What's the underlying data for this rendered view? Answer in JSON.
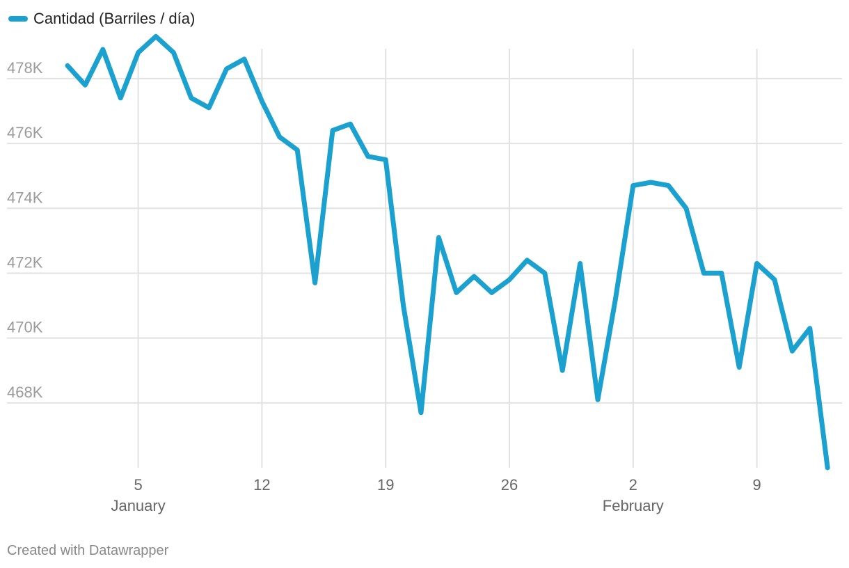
{
  "legend": {
    "label": "Cantidad (Barriles / día)"
  },
  "footer": {
    "credit": "Created with Datawrapper"
  },
  "colors": {
    "line": "#1ba1d0",
    "grid": "#e2e2e2",
    "axis_text": "#9a9a9a",
    "x_text": "#666666"
  },
  "chart_data": {
    "type": "line",
    "title": "",
    "xlabel": "",
    "ylabel": "",
    "grid": true,
    "legend_position": "top-left",
    "ylim": [
      466000,
      479500
    ],
    "yticks": [
      468000,
      470000,
      472000,
      474000,
      476000,
      478000
    ],
    "ytick_labels": [
      "468K",
      "470K",
      "472K",
      "474K",
      "476K",
      "478K"
    ],
    "xticks": [
      {
        "x": "2020-01-05",
        "label": "5",
        "month": "January"
      },
      {
        "x": "2020-01-12",
        "label": "12",
        "month": ""
      },
      {
        "x": "2020-01-19",
        "label": "19",
        "month": ""
      },
      {
        "x": "2020-01-26",
        "label": "26",
        "month": ""
      },
      {
        "x": "2020-02-02",
        "label": "2",
        "month": "February"
      },
      {
        "x": "2020-02-09",
        "label": "9",
        "month": ""
      }
    ],
    "series": [
      {
        "name": "Cantidad (Barriles / día)",
        "x": [
          "2020-01-01",
          "2020-01-02",
          "2020-01-03",
          "2020-01-04",
          "2020-01-05",
          "2020-01-06",
          "2020-01-07",
          "2020-01-08",
          "2020-01-09",
          "2020-01-10",
          "2020-01-11",
          "2020-01-12",
          "2020-01-13",
          "2020-01-14",
          "2020-01-15",
          "2020-01-16",
          "2020-01-17",
          "2020-01-18",
          "2020-01-19",
          "2020-01-20",
          "2020-01-21",
          "2020-01-22",
          "2020-01-23",
          "2020-01-24",
          "2020-01-25",
          "2020-01-26",
          "2020-01-27",
          "2020-01-28",
          "2020-01-29",
          "2020-01-30",
          "2020-01-31",
          "2020-02-01",
          "2020-02-02",
          "2020-02-03",
          "2020-02-04",
          "2020-02-05",
          "2020-02-06",
          "2020-02-07",
          "2020-02-08",
          "2020-02-09",
          "2020-02-10",
          "2020-02-11",
          "2020-02-12",
          "2020-02-13"
        ],
        "values": [
          478400,
          477800,
          478900,
          477400,
          478800,
          479300,
          478800,
          477400,
          477100,
          478300,
          478600,
          477300,
          476200,
          475800,
          471700,
          476400,
          476600,
          475600,
          475500,
          471000,
          467700,
          473100,
          471400,
          471900,
          471400,
          471800,
          472400,
          472000,
          469000,
          472300,
          468100,
          471200,
          474700,
          474800,
          474700,
          474000,
          472000,
          472000,
          469100,
          472300,
          471800,
          469600,
          470300,
          466000
        ]
      }
    ]
  }
}
